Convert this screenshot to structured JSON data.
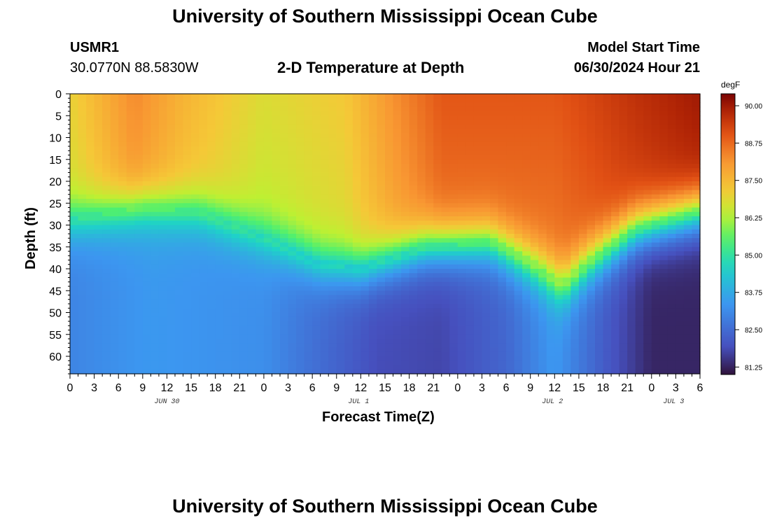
{
  "header": {
    "title": "University of Southern Mississippi Ocean Cube",
    "station": "USMR1",
    "coords": "30.0770N  88.5830W",
    "subtitle": "2-D Temperature at Depth",
    "model_label": "Model Start Time",
    "model_time": "06/30/2024 Hour 21"
  },
  "footer": {
    "title": "University of Southern Mississippi Ocean Cube"
  },
  "colorbar": {
    "unit": "degF",
    "ticks": [
      "90.00",
      "88.75",
      "87.50",
      "86.25",
      "85.00",
      "83.75",
      "82.50",
      "81.25"
    ],
    "tick_values": [
      90.0,
      88.75,
      87.5,
      86.25,
      85.0,
      83.75,
      82.5,
      81.25
    ],
    "range": [
      81.0,
      90.4
    ]
  },
  "chart_data": {
    "type": "heatmap",
    "title": "2-D Temperature at Depth",
    "xlabel": "Forecast Time(Z)",
    "ylabel": "Depth (ft)",
    "units": "degF",
    "x_hours_range": [
      0,
      78
    ],
    "x_tick_labels": [
      "0",
      "3",
      "6",
      "9",
      "12",
      "15",
      "18",
      "21",
      "0",
      "3",
      "6",
      "9",
      "12",
      "15",
      "18",
      "21",
      "0",
      "3",
      "6",
      "9",
      "12",
      "15",
      "18",
      "21",
      "0",
      "3",
      "6"
    ],
    "x_tick_hours": [
      0,
      3,
      6,
      9,
      12,
      15,
      18,
      21,
      24,
      27,
      30,
      33,
      36,
      39,
      42,
      45,
      48,
      51,
      54,
      57,
      60,
      63,
      66,
      69,
      72,
      75,
      78
    ],
    "date_labels": [
      {
        "label": "JUN 30",
        "hour": 12
      },
      {
        "label": "JUL 1",
        "hour": 36
      },
      {
        "label": "JUL 2",
        "hour": 60
      },
      {
        "label": "JUL 3",
        "hour": 75
      }
    ],
    "y_tick_labels": [
      "0",
      "5",
      "10",
      "15",
      "20",
      "25",
      "30",
      "35",
      "40",
      "45",
      "50",
      "55",
      "60"
    ],
    "y_tick_values": [
      0,
      5,
      10,
      15,
      20,
      25,
      30,
      35,
      40,
      45,
      50,
      55,
      60
    ],
    "ylim": [
      0,
      64
    ],
    "surface_temp_by_hour": [
      [
        0,
        87.0
      ],
      [
        8,
        88.3
      ],
      [
        14,
        87.6
      ],
      [
        24,
        86.8
      ],
      [
        34,
        87.2
      ],
      [
        40,
        88.2
      ],
      [
        46,
        89.0
      ],
      [
        52,
        89.0
      ],
      [
        60,
        89.0
      ],
      [
        70,
        89.6
      ],
      [
        78,
        90.0
      ]
    ],
    "mixed_layer_depth_by_hour": [
      [
        0,
        29
      ],
      [
        9,
        26
      ],
      [
        16,
        27
      ],
      [
        24,
        33
      ],
      [
        31,
        39
      ],
      [
        36,
        40
      ],
      [
        44,
        35
      ],
      [
        52,
        34
      ],
      [
        58,
        40
      ],
      [
        61,
        44
      ],
      [
        64,
        39
      ],
      [
        70,
        31
      ],
      [
        78,
        27
      ]
    ],
    "deep_temp_by_hour": [
      [
        0,
        83.0
      ],
      [
        10,
        83.4
      ],
      [
        24,
        83.2
      ],
      [
        30,
        82.6
      ],
      [
        38,
        81.9
      ],
      [
        46,
        81.8
      ],
      [
        54,
        82.4
      ],
      [
        60,
        83.4
      ],
      [
        66,
        82.2
      ],
      [
        72,
        81.3
      ],
      [
        78,
        81.3
      ]
    ]
  }
}
